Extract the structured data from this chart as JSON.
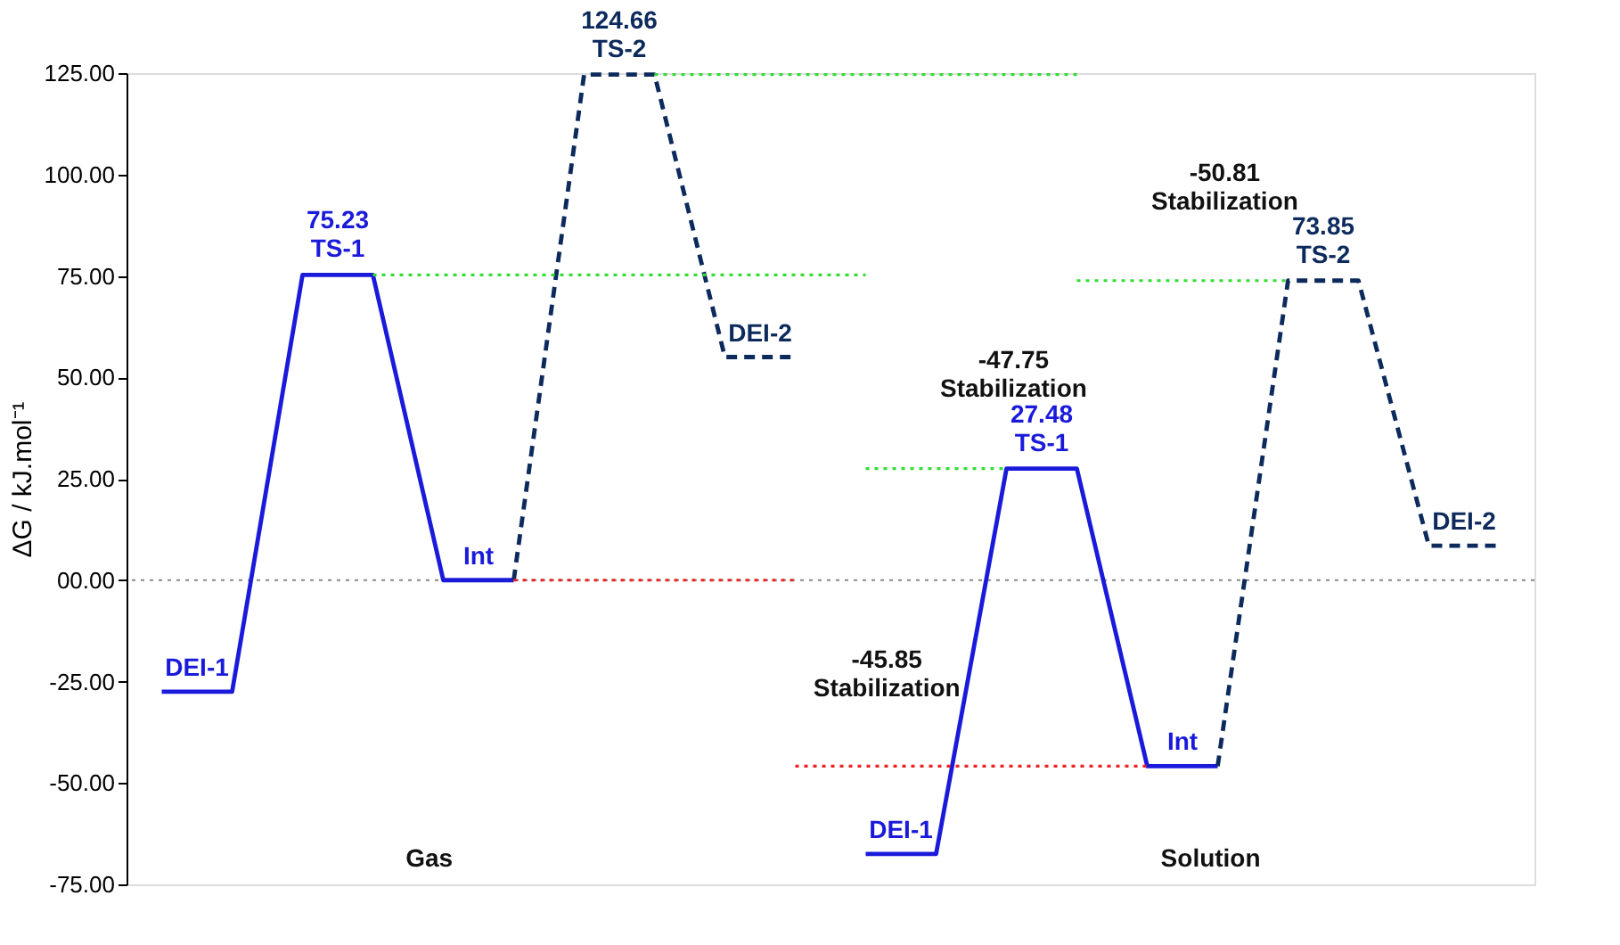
{
  "chart_data": {
    "type": "line",
    "ylabel": "ΔG / kJ.mol⁻¹",
    "categories": [
      null,
      null,
      null,
      null,
      null,
      null,
      null,
      null,
      null,
      null,
      null,
      null,
      null,
      null,
      null,
      null,
      null,
      null,
      null,
      null
    ],
    "ylim": [
      -75,
      125
    ],
    "yticks": [
      {
        "value": -75,
        "label": "-75.00"
      },
      {
        "value": -50,
        "label": "-50.00"
      },
      {
        "value": -25,
        "label": "-25.00"
      },
      {
        "value": 0,
        "label": "00.00"
      },
      {
        "value": 25,
        "label": "25.00"
      },
      {
        "value": 50,
        "label": "50.00"
      },
      {
        "value": 75,
        "label": "75.00"
      },
      {
        "value": 100,
        "label": "100.00"
      },
      {
        "value": 125,
        "label": "125.00"
      }
    ],
    "tick_labels": "y",
    "grid": false,
    "marker": "none",
    "series": [
      {
        "color": "#1a1adb",
        "line_style": "solid",
        "values": [
          -27.5,
          -27.5,
          75.23,
          75.23,
          0,
          0,
          null,
          null,
          null,
          null,
          null,
          null,
          null,
          null,
          null,
          null,
          null,
          null,
          null,
          null
        ],
        "value_labels": [
          "DEI-1",
          null,
          "75.23\nTS-1",
          null,
          "Int",
          null,
          null,
          null,
          null,
          null,
          null,
          null,
          null,
          null,
          null,
          null,
          null,
          null,
          null,
          null
        ]
      },
      {
        "color": "#0d2a5c",
        "line_style": "dashed",
        "values": [
          null,
          null,
          null,
          null,
          null,
          0,
          124.66,
          124.66,
          55,
          55,
          null,
          null,
          null,
          null,
          null,
          null,
          null,
          null,
          null,
          null
        ],
        "value_labels": [
          null,
          null,
          null,
          null,
          null,
          null,
          "124.66\nTS-2",
          null,
          "DEI-2",
          null,
          null,
          null,
          null,
          null,
          null,
          null,
          null,
          null,
          null,
          null
        ]
      },
      {
        "color": "#1a1adb",
        "line_style": "solid",
        "values": [
          null,
          null,
          null,
          null,
          null,
          null,
          null,
          null,
          null,
          null,
          -67.5,
          -67.5,
          27.48,
          27.48,
          -45.85,
          -45.85,
          null,
          null,
          null,
          null
        ],
        "value_labels": [
          null,
          null,
          null,
          null,
          null,
          null,
          null,
          null,
          null,
          null,
          "DEI-1",
          null,
          "27.48\nTS-1",
          null,
          "Int",
          null,
          null,
          null,
          null,
          null
        ]
      },
      {
        "color": "#0d2a5c",
        "line_style": "dashed",
        "values": [
          null,
          null,
          null,
          null,
          null,
          null,
          null,
          null,
          null,
          null,
          null,
          null,
          null,
          null,
          null,
          -45.85,
          73.85,
          73.85,
          8.5,
          8.5
        ],
        "value_labels": [
          null,
          null,
          null,
          null,
          null,
          null,
          null,
          null,
          null,
          null,
          null,
          null,
          null,
          null,
          null,
          null,
          "73.85\nTS-2",
          null,
          "DEI-2",
          null
        ]
      },
      {
        "color": "#33dd33",
        "line_style": "dotted",
        "values": [
          null,
          null,
          null,
          null,
          null,
          null,
          null,
          124.66,
          124.66,
          124.66,
          124.66,
          124.66,
          124.66,
          124.66,
          null,
          null,
          null,
          null,
          null,
          null
        ]
      },
      {
        "color": "#33dd33",
        "line_style": "dotted",
        "values": [
          null,
          null,
          null,
          null,
          null,
          null,
          null,
          null,
          null,
          null,
          null,
          null,
          null,
          73.85,
          73.85,
          73.85,
          73.85,
          null,
          null,
          null
        ]
      },
      {
        "color": "#33dd33",
        "line_style": "dotted",
        "values": [
          null,
          null,
          null,
          75.23,
          75.23,
          75.23,
          75.23,
          75.23,
          75.23,
          75.23,
          75.23,
          null,
          null,
          null,
          null,
          null,
          null,
          null,
          null,
          null
        ]
      },
      {
        "color": "#33dd33",
        "line_style": "dotted",
        "values": [
          null,
          null,
          null,
          null,
          null,
          null,
          null,
          null,
          null,
          null,
          27.48,
          27.48,
          27.48,
          null,
          null,
          null,
          null,
          null,
          null,
          null
        ]
      },
      {
        "color": "#ee2222",
        "line_style": "dotted",
        "values": [
          null,
          null,
          null,
          null,
          null,
          0,
          0,
          0,
          0,
          0,
          null,
          null,
          null,
          null,
          null,
          null,
          null,
          null,
          null,
          null
        ]
      },
      {
        "color": "#ee2222",
        "line_style": "dotted",
        "values": [
          null,
          null,
          null,
          null,
          null,
          null,
          null,
          null,
          null,
          -45.85,
          -45.85,
          -45.85,
          -45.85,
          -45.85,
          -45.85,
          null,
          null,
          null,
          null,
          null
        ]
      }
    ],
    "ref_lines": [
      {
        "axis": "y",
        "value": 0,
        "color": "#888888",
        "line_style": "dotted"
      }
    ],
    "annotations": [
      "-50.81\nStabilization",
      "-47.75\nStabilization",
      "-45.85\nStabilization",
      "Gas",
      "Solution"
    ]
  }
}
